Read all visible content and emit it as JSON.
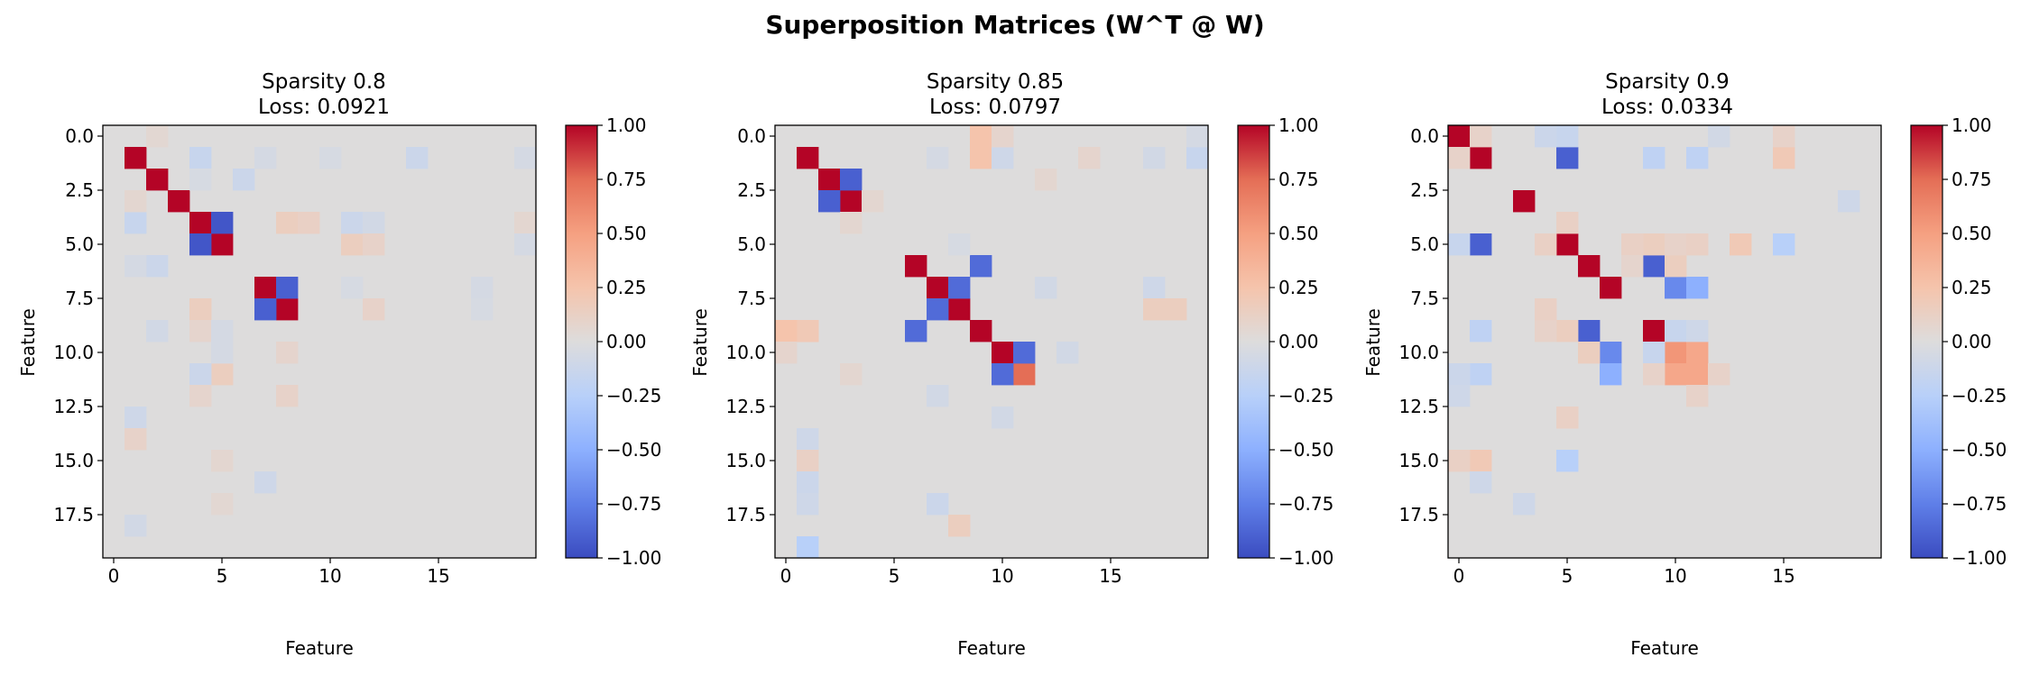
{
  "suptitle": "Superposition Matrices (W^T @ W)",
  "colormap": {
    "name": "coolwarm",
    "stops": [
      [
        -1.0,
        "#3b4cc0"
      ],
      [
        -0.75,
        "#5f7fe8"
      ],
      [
        -0.5,
        "#8db0fe"
      ],
      [
        -0.25,
        "#b8d0f9"
      ],
      [
        0.0,
        "#dddcdc"
      ],
      [
        0.25,
        "#f5c4ac"
      ],
      [
        0.5,
        "#f5a081"
      ],
      [
        0.75,
        "#e46e56"
      ],
      [
        1.0,
        "#b40426"
      ]
    ]
  },
  "chart_data": [
    {
      "type": "heatmap",
      "title_line1": "Sparsity 0.8",
      "title_line2": "Loss: 0.0921",
      "xlabel": "Feature",
      "ylabel": "Feature",
      "size": 20,
      "vmin": -1,
      "vmax": 1,
      "xticks": [
        0,
        5,
        10,
        15
      ],
      "xtick_labels": [
        "0",
        "5",
        "10",
        "15"
      ],
      "yticks": [
        0,
        2.5,
        5,
        7.5,
        10,
        12.5,
        15,
        17.5
      ],
      "ytick_labels": [
        "0.0",
        "2.5",
        "5.0",
        "7.5",
        "10.0",
        "12.5",
        "15.0",
        "17.5"
      ],
      "colorbar_ticks": [
        1.0,
        0.75,
        0.5,
        0.25,
        0.0,
        -0.25,
        -0.5,
        -0.75,
        -1.0
      ],
      "colorbar_labels": [
        "1.00",
        "0.75",
        "0.50",
        "0.25",
        "0.00",
        "−0.25",
        "−0.50",
        "−0.75",
        "−1.00"
      ],
      "cells": [
        [
          1,
          1,
          1.0
        ],
        [
          2,
          2,
          1.0
        ],
        [
          3,
          3,
          1.0
        ],
        [
          4,
          4,
          1.0
        ],
        [
          5,
          5,
          1.0
        ],
        [
          4,
          5,
          -0.95
        ],
        [
          5,
          4,
          -0.95
        ],
        [
          7,
          7,
          1.0
        ],
        [
          8,
          8,
          1.0
        ],
        [
          7,
          8,
          -0.9
        ],
        [
          8,
          7,
          -0.9
        ],
        [
          1,
          4,
          -0.15
        ],
        [
          4,
          1,
          -0.15
        ],
        [
          1,
          14,
          -0.12
        ],
        [
          4,
          8,
          0.15
        ],
        [
          4,
          9,
          0.12
        ],
        [
          8,
          4,
          0.15
        ],
        [
          6,
          2,
          -0.12
        ],
        [
          2,
          6,
          -0.12
        ],
        [
          11,
          5,
          0.15
        ],
        [
          5,
          11,
          0.15
        ],
        [
          11,
          4,
          -0.12
        ],
        [
          4,
          11,
          -0.12
        ],
        [
          4,
          12,
          -0.08
        ],
        [
          5,
          12,
          0.1
        ],
        [
          3,
          1,
          0.06
        ],
        [
          10,
          8,
          0.08
        ],
        [
          9,
          2,
          -0.08
        ],
        [
          8,
          12,
          0.1
        ],
        [
          12,
          8,
          0.1
        ],
        [
          13,
          1,
          -0.1
        ],
        [
          14,
          1,
          0.1
        ],
        [
          16,
          7,
          -0.1
        ],
        [
          18,
          1,
          -0.08
        ],
        [
          0,
          2,
          0.05
        ],
        [
          1,
          7,
          -0.06
        ],
        [
          1,
          10,
          -0.05
        ],
        [
          1,
          19,
          -0.06
        ],
        [
          4,
          19,
          0.06
        ],
        [
          5,
          19,
          -0.06
        ],
        [
          7,
          11,
          -0.05
        ],
        [
          7,
          17,
          -0.06
        ],
        [
          8,
          17,
          -0.05
        ],
        [
          9,
          4,
          0.08
        ],
        [
          10,
          5,
          -0.06
        ],
        [
          12,
          4,
          0.08
        ],
        [
          15,
          5,
          0.06
        ],
        [
          17,
          5,
          0.05
        ],
        [
          2,
          4,
          -0.05
        ],
        [
          6,
          1,
          -0.06
        ],
        [
          9,
          5,
          -0.06
        ]
      ]
    },
    {
      "type": "heatmap",
      "title_line1": "Sparsity 0.85",
      "title_line2": "Loss: 0.0797",
      "xlabel": "Feature",
      "ylabel": "Feature",
      "size": 20,
      "vmin": -1,
      "vmax": 1,
      "xticks": [
        0,
        5,
        10,
        15
      ],
      "xtick_labels": [
        "0",
        "5",
        "10",
        "15"
      ],
      "yticks": [
        0,
        2.5,
        5,
        7.5,
        10,
        12.5,
        15,
        17.5
      ],
      "ytick_labels": [
        "0.0",
        "2.5",
        "5.0",
        "7.5",
        "10.0",
        "12.5",
        "15.0",
        "17.5"
      ],
      "colorbar_ticks": [
        1.0,
        0.75,
        0.5,
        0.25,
        0.0,
        -0.25,
        -0.5,
        -0.75,
        -1.0
      ],
      "colorbar_labels": [
        "1.00",
        "0.75",
        "0.50",
        "0.25",
        "0.00",
        "−0.25",
        "−0.50",
        "−0.75",
        "−1.00"
      ],
      "cells": [
        [
          1,
          1,
          1.0
        ],
        [
          2,
          2,
          1.0
        ],
        [
          3,
          3,
          1.0
        ],
        [
          2,
          3,
          -0.9
        ],
        [
          3,
          2,
          -0.9
        ],
        [
          6,
          6,
          1.0
        ],
        [
          7,
          7,
          1.0
        ],
        [
          8,
          8,
          1.0
        ],
        [
          9,
          9,
          1.0
        ],
        [
          10,
          10,
          1.0
        ],
        [
          11,
          11,
          0.75
        ],
        [
          7,
          8,
          -0.85
        ],
        [
          8,
          7,
          -0.85
        ],
        [
          6,
          9,
          -0.85
        ],
        [
          9,
          6,
          -0.85
        ],
        [
          10,
          11,
          -0.85
        ],
        [
          11,
          10,
          -0.85
        ],
        [
          1,
          9,
          0.25
        ],
        [
          9,
          1,
          0.25
        ],
        [
          1,
          10,
          -0.1
        ],
        [
          1,
          19,
          -0.15
        ],
        [
          7,
          17,
          -0.1
        ],
        [
          8,
          17,
          0.15
        ],
        [
          17,
          7,
          -0.12
        ],
        [
          18,
          8,
          0.15
        ],
        [
          8,
          18,
          0.15
        ],
        [
          9,
          1,
          0.2
        ],
        [
          9,
          0,
          0.25
        ],
        [
          0,
          9,
          0.25
        ],
        [
          14,
          1,
          -0.1
        ],
        [
          15,
          1,
          0.12
        ],
        [
          16,
          1,
          -0.12
        ],
        [
          17,
          1,
          -0.1
        ],
        [
          19,
          1,
          -0.25
        ],
        [
          1,
          14,
          0.08
        ],
        [
          10,
          13,
          -0.08
        ],
        [
          13,
          10,
          -0.08
        ],
        [
          0,
          10,
          0.08
        ],
        [
          10,
          0,
          0.08
        ],
        [
          3,
          4,
          0.06
        ],
        [
          4,
          3,
          0.06
        ],
        [
          1,
          7,
          -0.06
        ],
        [
          12,
          7,
          -0.08
        ],
        [
          7,
          12,
          -0.08
        ],
        [
          2,
          12,
          0.06
        ],
        [
          5,
          8,
          -0.05
        ],
        [
          11,
          3,
          0.06
        ],
        [
          0,
          19,
          -0.06
        ],
        [
          1,
          17,
          -0.08
        ]
      ]
    },
    {
      "type": "heatmap",
      "title_line1": "Sparsity 0.9",
      "title_line2": "Loss: 0.0334",
      "xlabel": "Feature",
      "ylabel": "Feature",
      "size": 20,
      "vmin": -1,
      "vmax": 1,
      "xticks": [
        0,
        5,
        10,
        15
      ],
      "xtick_labels": [
        "0",
        "5",
        "10",
        "15"
      ],
      "yticks": [
        0,
        2.5,
        5,
        7.5,
        10,
        12.5,
        15,
        17.5
      ],
      "ytick_labels": [
        "0.0",
        "2.5",
        "5.0",
        "7.5",
        "10.0",
        "12.5",
        "15.0",
        "17.5"
      ],
      "colorbar_ticks": [
        1.0,
        0.75,
        0.5,
        0.25,
        0.0,
        -0.25,
        -0.5,
        -0.75,
        -1.0
      ],
      "colorbar_labels": [
        "1.00",
        "0.75",
        "0.50",
        "0.25",
        "0.00",
        "−0.25",
        "−0.50",
        "−0.75",
        "−1.00"
      ],
      "cells": [
        [
          0,
          0,
          1.0
        ],
        [
          1,
          1,
          1.0
        ],
        [
          3,
          3,
          1.0
        ],
        [
          5,
          5,
          1.0
        ],
        [
          6,
          6,
          1.0
        ],
        [
          7,
          7,
          1.0
        ],
        [
          9,
          9,
          1.0
        ],
        [
          1,
          5,
          -0.9
        ],
        [
          5,
          1,
          -0.9
        ],
        [
          6,
          9,
          -0.9
        ],
        [
          9,
          6,
          -0.9
        ],
        [
          7,
          10,
          -0.7
        ],
        [
          7,
          11,
          -0.5
        ],
        [
          10,
          7,
          -0.7
        ],
        [
          11,
          7,
          -0.5
        ],
        [
          10,
          10,
          0.55
        ],
        [
          10,
          11,
          0.45
        ],
        [
          11,
          10,
          0.45
        ],
        [
          11,
          11,
          0.45
        ],
        [
          0,
          5,
          -0.15
        ],
        [
          5,
          0,
          -0.15
        ],
        [
          1,
          9,
          -0.2
        ],
        [
          1,
          11,
          -0.2
        ],
        [
          9,
          1,
          -0.2
        ],
        [
          11,
          1,
          -0.2
        ],
        [
          5,
          13,
          0.2
        ],
        [
          5,
          15,
          -0.25
        ],
        [
          13,
          5,
          0.2
        ],
        [
          15,
          5,
          -0.25
        ],
        [
          1,
          15,
          0.2
        ],
        [
          9,
          5,
          0.15
        ],
        [
          5,
          9,
          0.15
        ],
        [
          6,
          10,
          0.15
        ],
        [
          10,
          6,
          0.15
        ],
        [
          9,
          10,
          -0.15
        ],
        [
          10,
          9,
          -0.15
        ],
        [
          15,
          1,
          0.2
        ],
        [
          15,
          0,
          0.12
        ],
        [
          1,
          0,
          0.1
        ],
        [
          0,
          1,
          0.1
        ],
        [
          5,
          4,
          0.12
        ],
        [
          4,
          5,
          0.12
        ],
        [
          0,
          4,
          -0.12
        ],
        [
          3,
          18,
          -0.1
        ],
        [
          16,
          1,
          -0.1
        ],
        [
          17,
          3,
          -0.1
        ],
        [
          13,
          5,
          0.12
        ],
        [
          11,
          12,
          0.1
        ],
        [
          12,
          11,
          0.1
        ],
        [
          11,
          0,
          -0.12
        ],
        [
          12,
          0,
          -0.1
        ],
        [
          9,
          4,
          0.1
        ],
        [
          8,
          4,
          0.12
        ],
        [
          5,
          10,
          0.1
        ],
        [
          5,
          11,
          0.12
        ],
        [
          5,
          8,
          0.12
        ],
        [
          9,
          11,
          -0.1
        ],
        [
          11,
          9,
          0.1
        ],
        [
          6,
          8,
          0.08
        ],
        [
          0,
          12,
          -0.08
        ],
        [
          0,
          15,
          0.1
        ]
      ]
    }
  ]
}
